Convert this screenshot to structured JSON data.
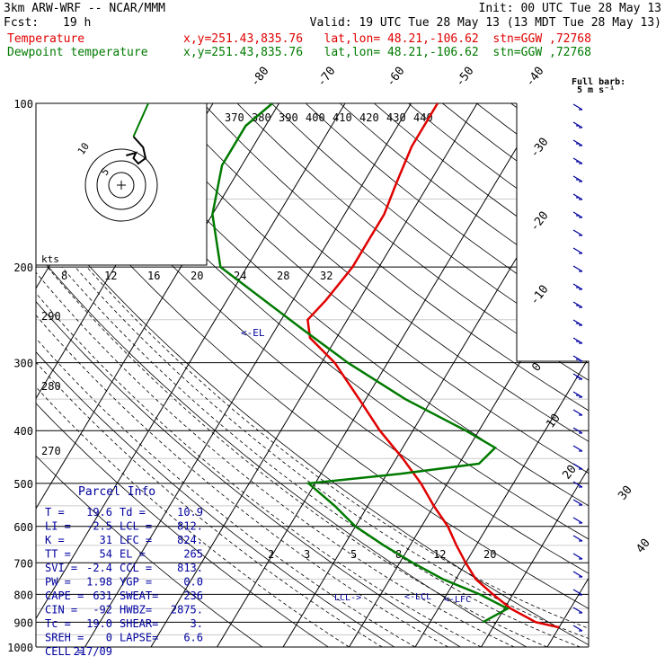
{
  "header": {
    "model": "3km ARW-WRF -- NCAR/MMM",
    "init": "Init: 00 UTC Tue 28 May 13",
    "fcst_label": "Fcst:",
    "fcst_value": "19 h",
    "valid": "Valid: 19 UTC Tue 28 May 13 (13 MDT Tue 28 May 13)",
    "temp_name": "Temperature",
    "dew_name": "Dewpoint temperature",
    "loc_info": "x,y=251.43,835.76   lat,lon= 48.21,-106.62  stn=GGW ,72768"
  },
  "colors": {
    "temperature": "#e00000",
    "dewpoint": "#007a00",
    "wind": "#0000a0",
    "parcel": "#0000a0"
  },
  "barb_legend": {
    "title": "Full barb:",
    "unit": "5 m s⁻¹"
  },
  "parcel_info": {
    "title": "Parcel Info",
    "rows": [
      [
        "T  =",
        "19.6",
        "Td  =",
        "10.9"
      ],
      [
        "LI =",
        "-2.5",
        "LCL =",
        "812."
      ],
      [
        "K  =",
        "31",
        "LFC =",
        "824."
      ],
      [
        "TT =",
        "54",
        "EL  =",
        "265"
      ],
      [
        "SVI =",
        "-2.4",
        "CCL =",
        "813."
      ],
      [
        "PW =",
        "1.98",
        "YGP =",
        "0.0"
      ],
      [
        "CAPE =",
        "631",
        "SWEAT=",
        "236"
      ],
      [
        "CIN =",
        "-92",
        "HWBZ=",
        "2875."
      ],
      [
        "Tc =",
        "19.0",
        "SHEAR=",
        "3."
      ],
      [
        "SREH =",
        "0",
        "LAPSE=",
        "6.6"
      ],
      [
        "CELL =",
        "217/09",
        "",
        ""
      ]
    ]
  },
  "annotations": {
    "el": "<-EL",
    "lcl_left": "LCL->",
    "lcl_right": "<-LCL",
    "lfc": "<-LFC"
  },
  "hodograph": {
    "unit": "kts",
    "ring_labels": [
      "5",
      "10"
    ],
    "path": [
      [
        5,
        -18
      ],
      [
        9,
        -14
      ],
      [
        10,
        -10
      ],
      [
        7,
        -8
      ],
      [
        5,
        -10
      ],
      [
        6,
        -12
      ],
      [
        2,
        -11
      ]
    ]
  },
  "chart_data": {
    "type": "line",
    "title": "",
    "ylabel": "",
    "xlabel": "",
    "pressure_range": [
      1000,
      100
    ],
    "pressure_ticks": [
      100,
      200,
      300,
      400,
      500,
      600,
      700,
      800,
      900,
      1000
    ],
    "isotherm_labels": [
      -80,
      -70,
      -60,
      -50,
      -40,
      -30,
      -20,
      -10,
      0,
      10,
      20,
      30,
      40
    ],
    "theta_e_labels": [
      370,
      380,
      390,
      400,
      410,
      420,
      430,
      440
    ],
    "theta_labels_left": [
      290,
      280,
      270
    ],
    "mixing_ratio_labels_mid": [
      8,
      12,
      16,
      20,
      24,
      28,
      32
    ],
    "mixing_ratio_labels_low": [
      2,
      3,
      5,
      8,
      12,
      20
    ],
    "series": [
      {
        "name": "Temperature",
        "points": [
          [
            920,
            20
          ],
          [
            900,
            16
          ],
          [
            850,
            11
          ],
          [
            800,
            7
          ],
          [
            750,
            3
          ],
          [
            700,
            0
          ],
          [
            650,
            -3
          ],
          [
            600,
            -6
          ],
          [
            550,
            -10
          ],
          [
            500,
            -14
          ],
          [
            450,
            -19
          ],
          [
            400,
            -25
          ],
          [
            350,
            -31
          ],
          [
            300,
            -38
          ],
          [
            270,
            -44
          ],
          [
            250,
            -46
          ],
          [
            230,
            -45
          ],
          [
            200,
            -44
          ],
          [
            180,
            -44
          ],
          [
            160,
            -44
          ],
          [
            140,
            -45
          ],
          [
            120,
            -46
          ],
          [
            100,
            -46
          ]
        ]
      },
      {
        "name": "Dewpoint temperature",
        "points": [
          [
            900,
            8
          ],
          [
            850,
            10.5
          ],
          [
            800,
            5
          ],
          [
            750,
            -2
          ],
          [
            700,
            -8
          ],
          [
            650,
            -14
          ],
          [
            600,
            -20
          ],
          [
            550,
            -25
          ],
          [
            500,
            -31
          ],
          [
            480,
            -18
          ],
          [
            460,
            -7
          ],
          [
            430,
            -6
          ],
          [
            400,
            -12
          ],
          [
            350,
            -24
          ],
          [
            300,
            -36
          ],
          [
            260,
            -46
          ],
          [
            200,
            -64
          ],
          [
            160,
            -70
          ],
          [
            130,
            -73
          ],
          [
            110,
            -73
          ],
          [
            100,
            -71
          ]
        ]
      }
    ],
    "wind_barbs_kts": [
      5,
      10,
      10,
      10,
      10,
      10,
      10,
      5,
      5,
      5,
      10,
      10,
      10,
      10,
      10,
      10,
      10,
      5,
      5,
      5,
      5,
      5,
      5,
      5,
      5,
      5,
      5,
      5,
      5,
      5
    ],
    "grid": true
  }
}
